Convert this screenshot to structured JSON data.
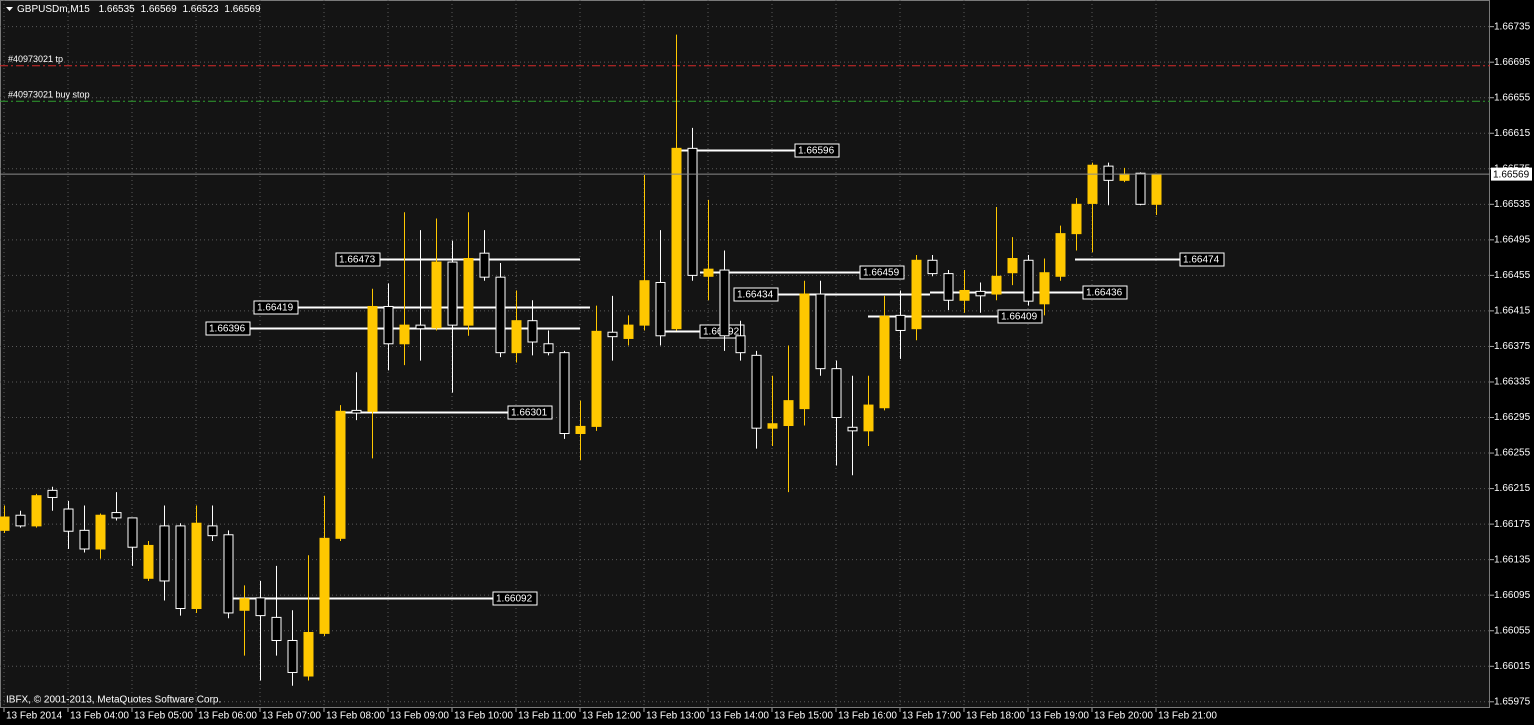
{
  "chart_data": {
    "type": "candlestick",
    "symbol": "GBPUSDm,M15",
    "x": [
      "13 Feb 2014",
      null,
      null,
      null,
      "13 Feb 04:00",
      null,
      null,
      null,
      "13 Feb 05:00",
      null,
      null,
      null,
      "13 Feb 06:00",
      null,
      null,
      null,
      "13 Feb 07:00",
      null,
      null,
      null,
      "13 Feb 08:00",
      null,
      null,
      null,
      "13 Feb 09:00",
      null,
      null,
      null,
      "13 Feb 10:00",
      null,
      null,
      null,
      "13 Feb 11:00",
      null,
      null,
      null,
      "13 Feb 12:00",
      null,
      null,
      null,
      "13 Feb 13:00",
      null,
      null,
      null,
      "13 Feb 14:00",
      null,
      null,
      null,
      "13 Feb 15:00",
      null,
      null,
      null,
      "13 Feb 16:00",
      null,
      null,
      null,
      "13 Feb 17:00",
      null,
      null,
      null,
      "13 Feb 18:00",
      null,
      null,
      null,
      "13 Feb 19:00",
      null,
      null,
      null,
      "13 Feb 20:00",
      null,
      null,
      null,
      "13 Feb 21:00"
    ],
    "open": [
      1.66168,
      1.66185,
      1.66173,
      1.66213,
      1.66192,
      1.66168,
      1.66147,
      1.66188,
      1.66182,
      1.66114,
      1.66173,
      1.66173,
      1.6608,
      1.66173,
      1.66163,
      1.66078,
      1.66092,
      1.6607,
      1.66044,
      1.66004,
      1.66052,
      1.66159,
      1.66303,
      1.66302,
      1.6642,
      1.66378,
      1.66399,
      1.66396,
      1.6647,
      1.66399,
      1.6648,
      1.66453,
      1.66368,
      1.66404,
      1.66378,
      1.66368,
      1.66277,
      1.66285,
      1.66391,
      1.66384,
      1.66399,
      1.66447,
      1.66395,
      1.66598,
      1.66454,
      1.66461,
      1.66387,
      1.66365,
      1.66283,
      1.66286,
      1.66305,
      1.66434,
      1.6635,
      1.66284,
      1.6628,
      1.66306,
      1.6641,
      1.66395,
      1.66472,
      1.66457,
      1.66427,
      1.66437,
      1.66434,
      1.66458,
      1.66472,
      1.66423,
      1.66454,
      1.66502,
      1.66536,
      1.66578,
      1.66562,
      1.6657,
      1.66535
    ],
    "high": [
      1.66196,
      1.6619,
      1.66209,
      1.66217,
      1.66201,
      1.66196,
      1.66187,
      1.66211,
      1.66182,
      1.66156,
      1.66196,
      1.66176,
      1.66196,
      1.66196,
      1.66168,
      1.66106,
      1.66111,
      1.66128,
      1.66078,
      1.6614,
      1.66207,
      1.66309,
      1.66346,
      1.6644,
      1.66446,
      1.66526,
      1.66506,
      1.66519,
      1.66494,
      1.66526,
      1.66506,
      1.66469,
      1.66438,
      1.66427,
      1.66393,
      1.6637,
      1.66314,
      1.66421,
      1.66432,
      1.6641,
      1.66568,
      1.66506,
      1.66726,
      1.66621,
      1.6654,
      1.66483,
      1.66404,
      1.6637,
      1.66342,
      1.66376,
      1.66449,
      1.66449,
      1.66359,
      1.66342,
      1.66342,
      1.66432,
      1.66438,
      1.66478,
      1.66478,
      1.66461,
      1.66461,
      1.66447,
      1.66532,
      1.66498,
      1.66478,
      1.66474,
      1.66511,
      1.66542,
      1.66582,
      1.66582,
      1.66576,
      1.66571,
      1.66569
    ],
    "low": [
      1.66165,
      1.66171,
      1.66171,
      1.6619,
      1.66147,
      1.66143,
      1.66136,
      1.66179,
      1.66128,
      1.66111,
      1.66089,
      1.66072,
      1.66075,
      1.66156,
      1.66069,
      1.66027,
      1.65999,
      1.66027,
      1.65993,
      1.65999,
      1.66049,
      1.66156,
      1.66292,
      1.66249,
      1.66348,
      1.66354,
      1.66359,
      1.66393,
      1.66323,
      1.66387,
      1.66449,
      1.66363,
      1.66357,
      1.66365,
      1.66365,
      1.66271,
      1.66247,
      1.6628,
      1.66359,
      1.66376,
      1.66393,
      1.66376,
      1.66393,
      1.66449,
      1.66427,
      1.6637,
      1.66359,
      1.6626,
      1.66263,
      1.66211,
      1.66286,
      1.66342,
      1.66241,
      1.6623,
      1.66263,
      1.66303,
      1.66361,
      1.66382,
      1.66454,
      1.66416,
      1.66413,
      1.66413,
      1.66427,
      1.66444,
      1.66421,
      1.6641,
      1.66449,
      1.66483,
      1.66481,
      1.66534,
      1.6656,
      1.66534,
      1.66523
    ],
    "close": [
      1.66183,
      1.66173,
      1.66207,
      1.66205,
      1.66167,
      1.66147,
      1.66185,
      1.66182,
      1.66149,
      1.66151,
      1.66111,
      1.6608,
      1.66176,
      1.66162,
      1.66075,
      1.66091,
      1.66072,
      1.66044,
      1.66008,
      1.66053,
      1.66159,
      1.66302,
      1.663,
      1.6642,
      1.66378,
      1.66399,
      1.66395,
      1.6647,
      1.66399,
      1.66474,
      1.66453,
      1.66368,
      1.66404,
      1.6638,
      1.66368,
      1.66277,
      1.66285,
      1.66392,
      1.66386,
      1.66399,
      1.66449,
      1.66387,
      1.66598,
      1.66455,
      1.66462,
      1.66387,
      1.66368,
      1.66283,
      1.66288,
      1.66314,
      1.66434,
      1.6635,
      1.66295,
      1.6628,
      1.66309,
      1.66409,
      1.66393,
      1.66472,
      1.66457,
      1.66427,
      1.66438,
      1.66432,
      1.66454,
      1.66474,
      1.66426,
      1.66458,
      1.66502,
      1.66535,
      1.66579,
      1.66562,
      1.66569,
      1.66535,
      1.66569
    ],
    "up_color": "#ffc800",
    "down_color": "#000000",
    "ylim": [
      1.65968,
      1.66765
    ],
    "yticks": [
      1.66735,
      1.66695,
      1.66655,
      1.66615,
      1.66575,
      1.66535,
      1.66495,
      1.66455,
      1.66415,
      1.66375,
      1.66335,
      1.66295,
      1.66255,
      1.66215,
      1.66175,
      1.66135,
      1.66095,
      1.66055,
      1.66015,
      1.65975
    ],
    "grid": true,
    "levels": [
      1.66473,
      1.66419,
      1.66396,
      1.66301,
      1.66092,
      1.66596,
      1.66392,
      1.66459,
      1.66434,
      1.66436,
      1.66409,
      1.66474
    ],
    "order_lines": [
      {
        "name": "#40973021 tp",
        "value": 1.66691,
        "color": "#d42a2a"
      },
      {
        "name": "#40973021 buy stop",
        "value": 1.66651,
        "color": "#2f9e2f"
      }
    ],
    "footer": "IBFX, © 2001-2013, MetaQuotes Software Corp."
  }
}
